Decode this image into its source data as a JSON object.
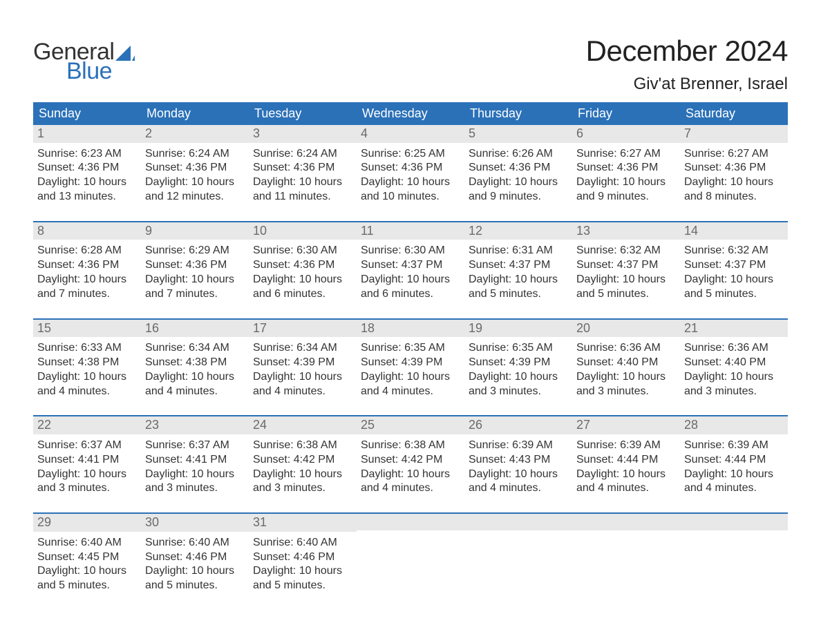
{
  "logo": {
    "word1": "General",
    "word2": "Blue",
    "accent_color": "#2b71b8"
  },
  "title": "December 2024",
  "location": "Giv'at Brenner, Israel",
  "colors": {
    "header_bg": "#2b71b8",
    "header_text": "#ffffff",
    "daynum_bg": "#e8e8e8",
    "daynum_text": "#6a6a6a",
    "row_border": "#2b71b8",
    "body_text": "#333333",
    "background": "#ffffff"
  },
  "typography": {
    "title_fontsize": 42,
    "location_fontsize": 24,
    "header_fontsize": 18,
    "daynum_fontsize": 18,
    "body_fontsize": 16,
    "logo_fontsize": 34
  },
  "weekdays": [
    "Sunday",
    "Monday",
    "Tuesday",
    "Wednesday",
    "Thursday",
    "Friday",
    "Saturday"
  ],
  "labels": {
    "sunrise": "Sunrise:",
    "sunset": "Sunset:",
    "daylight": "Daylight:"
  },
  "weeks": [
    [
      {
        "day": 1,
        "sunrise": "6:23 AM",
        "sunset": "4:36 PM",
        "daylight_h": 10,
        "daylight_m": 13
      },
      {
        "day": 2,
        "sunrise": "6:24 AM",
        "sunset": "4:36 PM",
        "daylight_h": 10,
        "daylight_m": 12
      },
      {
        "day": 3,
        "sunrise": "6:24 AM",
        "sunset": "4:36 PM",
        "daylight_h": 10,
        "daylight_m": 11
      },
      {
        "day": 4,
        "sunrise": "6:25 AM",
        "sunset": "4:36 PM",
        "daylight_h": 10,
        "daylight_m": 10
      },
      {
        "day": 5,
        "sunrise": "6:26 AM",
        "sunset": "4:36 PM",
        "daylight_h": 10,
        "daylight_m": 9
      },
      {
        "day": 6,
        "sunrise": "6:27 AM",
        "sunset": "4:36 PM",
        "daylight_h": 10,
        "daylight_m": 9
      },
      {
        "day": 7,
        "sunrise": "6:27 AM",
        "sunset": "4:36 PM",
        "daylight_h": 10,
        "daylight_m": 8
      }
    ],
    [
      {
        "day": 8,
        "sunrise": "6:28 AM",
        "sunset": "4:36 PM",
        "daylight_h": 10,
        "daylight_m": 7
      },
      {
        "day": 9,
        "sunrise": "6:29 AM",
        "sunset": "4:36 PM",
        "daylight_h": 10,
        "daylight_m": 7
      },
      {
        "day": 10,
        "sunrise": "6:30 AM",
        "sunset": "4:36 PM",
        "daylight_h": 10,
        "daylight_m": 6
      },
      {
        "day": 11,
        "sunrise": "6:30 AM",
        "sunset": "4:37 PM",
        "daylight_h": 10,
        "daylight_m": 6
      },
      {
        "day": 12,
        "sunrise": "6:31 AM",
        "sunset": "4:37 PM",
        "daylight_h": 10,
        "daylight_m": 5
      },
      {
        "day": 13,
        "sunrise": "6:32 AM",
        "sunset": "4:37 PM",
        "daylight_h": 10,
        "daylight_m": 5
      },
      {
        "day": 14,
        "sunrise": "6:32 AM",
        "sunset": "4:37 PM",
        "daylight_h": 10,
        "daylight_m": 5
      }
    ],
    [
      {
        "day": 15,
        "sunrise": "6:33 AM",
        "sunset": "4:38 PM",
        "daylight_h": 10,
        "daylight_m": 4
      },
      {
        "day": 16,
        "sunrise": "6:34 AM",
        "sunset": "4:38 PM",
        "daylight_h": 10,
        "daylight_m": 4
      },
      {
        "day": 17,
        "sunrise": "6:34 AM",
        "sunset": "4:39 PM",
        "daylight_h": 10,
        "daylight_m": 4
      },
      {
        "day": 18,
        "sunrise": "6:35 AM",
        "sunset": "4:39 PM",
        "daylight_h": 10,
        "daylight_m": 4
      },
      {
        "day": 19,
        "sunrise": "6:35 AM",
        "sunset": "4:39 PM",
        "daylight_h": 10,
        "daylight_m": 3
      },
      {
        "day": 20,
        "sunrise": "6:36 AM",
        "sunset": "4:40 PM",
        "daylight_h": 10,
        "daylight_m": 3
      },
      {
        "day": 21,
        "sunrise": "6:36 AM",
        "sunset": "4:40 PM",
        "daylight_h": 10,
        "daylight_m": 3
      }
    ],
    [
      {
        "day": 22,
        "sunrise": "6:37 AM",
        "sunset": "4:41 PM",
        "daylight_h": 10,
        "daylight_m": 3
      },
      {
        "day": 23,
        "sunrise": "6:37 AM",
        "sunset": "4:41 PM",
        "daylight_h": 10,
        "daylight_m": 3
      },
      {
        "day": 24,
        "sunrise": "6:38 AM",
        "sunset": "4:42 PM",
        "daylight_h": 10,
        "daylight_m": 3
      },
      {
        "day": 25,
        "sunrise": "6:38 AM",
        "sunset": "4:42 PM",
        "daylight_h": 10,
        "daylight_m": 4
      },
      {
        "day": 26,
        "sunrise": "6:39 AM",
        "sunset": "4:43 PM",
        "daylight_h": 10,
        "daylight_m": 4
      },
      {
        "day": 27,
        "sunrise": "6:39 AM",
        "sunset": "4:44 PM",
        "daylight_h": 10,
        "daylight_m": 4
      },
      {
        "day": 28,
        "sunrise": "6:39 AM",
        "sunset": "4:44 PM",
        "daylight_h": 10,
        "daylight_m": 4
      }
    ],
    [
      {
        "day": 29,
        "sunrise": "6:40 AM",
        "sunset": "4:45 PM",
        "daylight_h": 10,
        "daylight_m": 5
      },
      {
        "day": 30,
        "sunrise": "6:40 AM",
        "sunset": "4:46 PM",
        "daylight_h": 10,
        "daylight_m": 5
      },
      {
        "day": 31,
        "sunrise": "6:40 AM",
        "sunset": "4:46 PM",
        "daylight_h": 10,
        "daylight_m": 5
      },
      null,
      null,
      null,
      null
    ]
  ]
}
